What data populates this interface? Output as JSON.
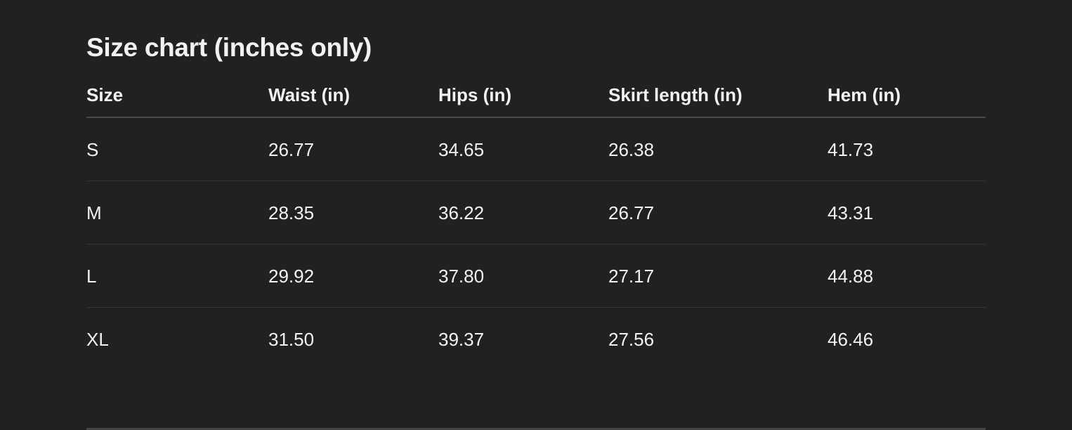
{
  "title": "Size chart (inches only)",
  "columns": [
    "Size",
    "Waist (in)",
    "Hips (in)",
    "Skirt length (in)",
    "Hem (in)"
  ],
  "rows": [
    [
      "S",
      "26.77",
      "34.65",
      "26.38",
      "41.73"
    ],
    [
      "M",
      "28.35",
      "36.22",
      "26.77",
      "43.31"
    ],
    [
      "L",
      "29.92",
      "37.80",
      "27.17",
      "44.88"
    ],
    [
      "XL",
      "31.50",
      "39.37",
      "27.56",
      "46.46"
    ]
  ]
}
